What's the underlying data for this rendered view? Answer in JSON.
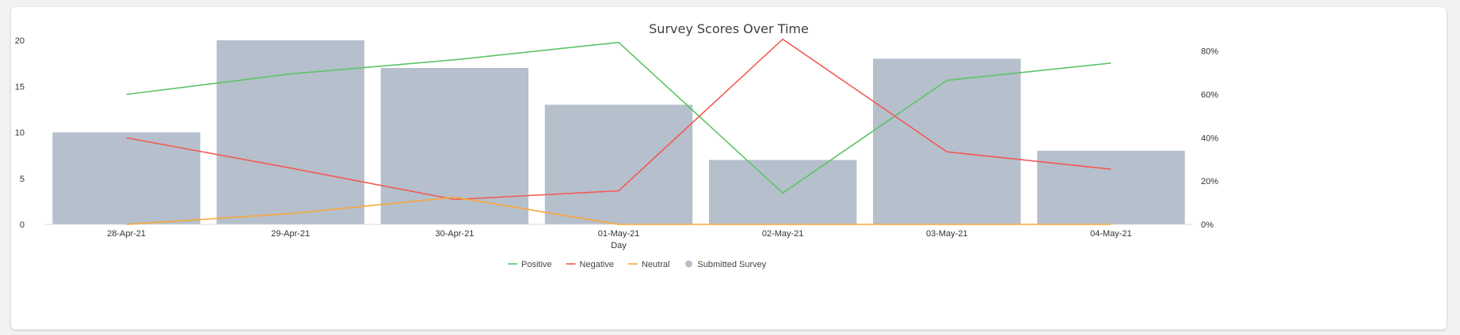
{
  "chart_data": {
    "type": "bar",
    "title": "Survey Scores Over Time",
    "xlabel": "Day",
    "categories": [
      "28-Apr-21",
      "29-Apr-21",
      "30-Apr-21",
      "01-May-21",
      "02-May-21",
      "03-May-21",
      "04-May-21"
    ],
    "left_axis": {
      "ylim": [
        0,
        20
      ],
      "ticks": [
        "0",
        "5",
        "10",
        "15",
        "20"
      ]
    },
    "right_axis": {
      "ylim": [
        0,
        0.85
      ],
      "ticks": [
        "0%",
        "20%",
        "40%",
        "60%",
        "80%"
      ],
      "tick_values": [
        0,
        0.2,
        0.4,
        0.6,
        0.8
      ]
    },
    "grid": false,
    "legend_position": "bottom",
    "series": [
      {
        "name": "Positive",
        "kind": "line",
        "axis": "right",
        "color": "#5cc466",
        "values": [
          0.6,
          0.695,
          0.76,
          0.84,
          0.145,
          0.665,
          0.745
        ]
      },
      {
        "name": "Negative",
        "kind": "line",
        "axis": "right",
        "color": "#f25a55",
        "values": [
          0.4,
          0.26,
          0.115,
          0.155,
          0.855,
          0.335,
          0.255
        ]
      },
      {
        "name": "Neutral",
        "kind": "line",
        "axis": "right",
        "color": "#f8a735",
        "values": [
          0.0,
          0.05,
          0.125,
          0.0,
          0.0,
          0.0,
          0.0
        ]
      },
      {
        "name": "Submitted Survey",
        "kind": "bar",
        "axis": "left",
        "color": "#b6bfcc",
        "values": [
          10,
          20,
          17,
          13,
          7,
          18,
          8
        ]
      }
    ]
  }
}
